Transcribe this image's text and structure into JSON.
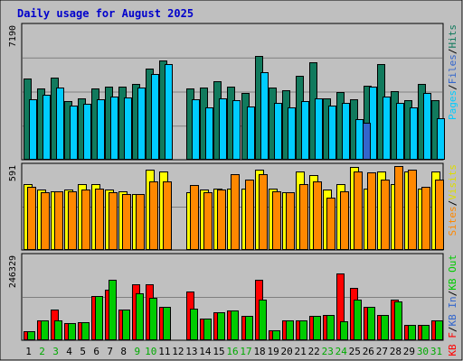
{
  "chart_data": {
    "type": "bar",
    "title": "Daily usage for August 2025",
    "categories": [
      "1",
      "2",
      "3",
      "4",
      "5",
      "6",
      "7",
      "8",
      "9",
      "10",
      "11",
      "12",
      "13",
      "14",
      "15",
      "16",
      "17",
      "18",
      "19",
      "20",
      "21",
      "22",
      "23",
      "24",
      "25",
      "26",
      "27",
      "28",
      "29",
      "30",
      "31"
    ],
    "weekend_days": [
      "2",
      "3",
      "9",
      "10",
      "16",
      "17",
      "23",
      "24",
      "30",
      "31"
    ],
    "panels": [
      {
        "id": "hits-files-pages",
        "scale_label": "7190",
        "ymax": 7190,
        "series": [
          {
            "name": "Hits",
            "color": "#117a5d",
            "values": [
              4390,
              3870,
              4440,
              3200,
              3350,
              3860,
              3980,
              3980,
              4090,
              4930,
              5370,
              50,
              3860,
              3900,
              4260,
              3960,
              3630,
              5640,
              3930,
              3770,
              4530,
              5290,
              3330,
              3690,
              3290,
              4020,
              5200,
              3730,
              3220,
              4120,
              3220
            ]
          },
          {
            "name": "Files",
            "color": "#00ccff",
            "values": [
              3260,
              3500,
              3930,
              2950,
              3030,
              3300,
              3410,
              3360,
              3890,
              4650,
              5200,
              0,
              3270,
              2830,
              3350,
              3250,
              2910,
              4760,
              3080,
              2830,
              3190,
              3320,
              2950,
              3060,
              2220,
              3950,
              3400,
              3070,
              2860,
              3610,
              2270
            ]
          },
          {
            "name": "Pages",
            "color": "#3366cc",
            "values": [
              0,
              0,
              0,
              0,
              0,
              0,
              0,
              0,
              0,
              0,
              0,
              0,
              0,
              0,
              0,
              0,
              0,
              0,
              0,
              0,
              0,
              0,
              0,
              0,
              2010,
              0,
              0,
              0,
              0,
              0,
              0
            ]
          }
        ],
        "legend": [
          {
            "text": "Pages",
            "color": "#00ccff"
          },
          {
            "text": "/",
            "color": "#000000"
          },
          {
            "text": "Files",
            "color": "#3366cc"
          },
          {
            "text": "/",
            "color": "#000000"
          },
          {
            "text": "Hits",
            "color": "#117a5d"
          }
        ]
      },
      {
        "id": "visits-sites",
        "scale_label": "591",
        "ymax": 591,
        "series": [
          {
            "name": "Visits",
            "color": "#ffff00",
            "values": [
              470,
              430,
              420,
              430,
              470,
              470,
              430,
              420,
              400,
              570,
              560,
              0,
              410,
              430,
              440,
              440,
              440,
              570,
              440,
              410,
              560,
              530,
              430,
              470,
              590,
              440,
              560,
              470,
              560,
              440,
              560
            ]
          },
          {
            "name": "Sites",
            "color": "#ff8800",
            "values": [
              450,
              410,
              420,
              420,
              430,
              440,
              410,
              400,
              400,
              490,
              490,
              0,
              460,
              410,
              430,
              540,
              500,
              540,
              420,
              410,
              470,
              490,
              370,
              420,
              560,
              550,
              500,
              600,
              570,
              450,
              500
            ]
          }
        ],
        "legend": [
          {
            "text": "Sites",
            "color": "#ff8800"
          },
          {
            "text": "/",
            "color": "#000000"
          },
          {
            "text": "Visits",
            "color": "#dddd00"
          }
        ]
      },
      {
        "id": "kbf-kbin-kbout",
        "scale_label": "246329",
        "ymax": 246329,
        "series": [
          {
            "name": "KB F",
            "color": "#ff0000",
            "values": [
              28000,
              60000,
              90000,
              50000,
              53000,
              130000,
              150000,
              92000,
              165000,
              165000,
              100000,
              0,
              145000,
              64000,
              84000,
              88000,
              72000,
              180000,
              30000,
              58000,
              60000,
              72000,
              75000,
              197000,
              155000,
              100000,
              75000,
              120000,
              46000,
              46000,
              60000
            ]
          },
          {
            "name": "KB In",
            "color": "#3366cc",
            "values": [
              0,
              0,
              0,
              0,
              0,
              0,
              0,
              0,
              0,
              0,
              0,
              0,
              0,
              0,
              0,
              0,
              0,
              0,
              0,
              0,
              0,
              0,
              0,
              0,
              0,
              0,
              0,
              0,
              0,
              0,
              0
            ]
          },
          {
            "name": "KB Out",
            "color": "#00cc00",
            "values": [
              28000,
              60000,
              60000,
              50000,
              53000,
              130000,
              180000,
              92000,
              140000,
              125000,
              100000,
              0,
              95000,
              64000,
              84000,
              88000,
              72000,
              120000,
              30000,
              58000,
              60000,
              72000,
              75000,
              55000,
              120000,
              100000,
              75000,
              115000,
              46000,
              46000,
              60000
            ]
          }
        ],
        "legend": [
          {
            "text": "KB F",
            "color": "#ff0000"
          },
          {
            "text": "/",
            "color": "#000000"
          },
          {
            "text": "KB In",
            "color": "#3366cc"
          },
          {
            "text": "/",
            "color": "#000000"
          },
          {
            "text": "KB Out",
            "color": "#00cc00"
          }
        ]
      }
    ],
    "colors": {
      "background": "#bfbfbf",
      "plot": "#c0c0c0",
      "title": "#0000cc",
      "weekday_label": "#000000",
      "weekend_label": "#00aa00",
      "grid": "#7f7f7f"
    }
  }
}
